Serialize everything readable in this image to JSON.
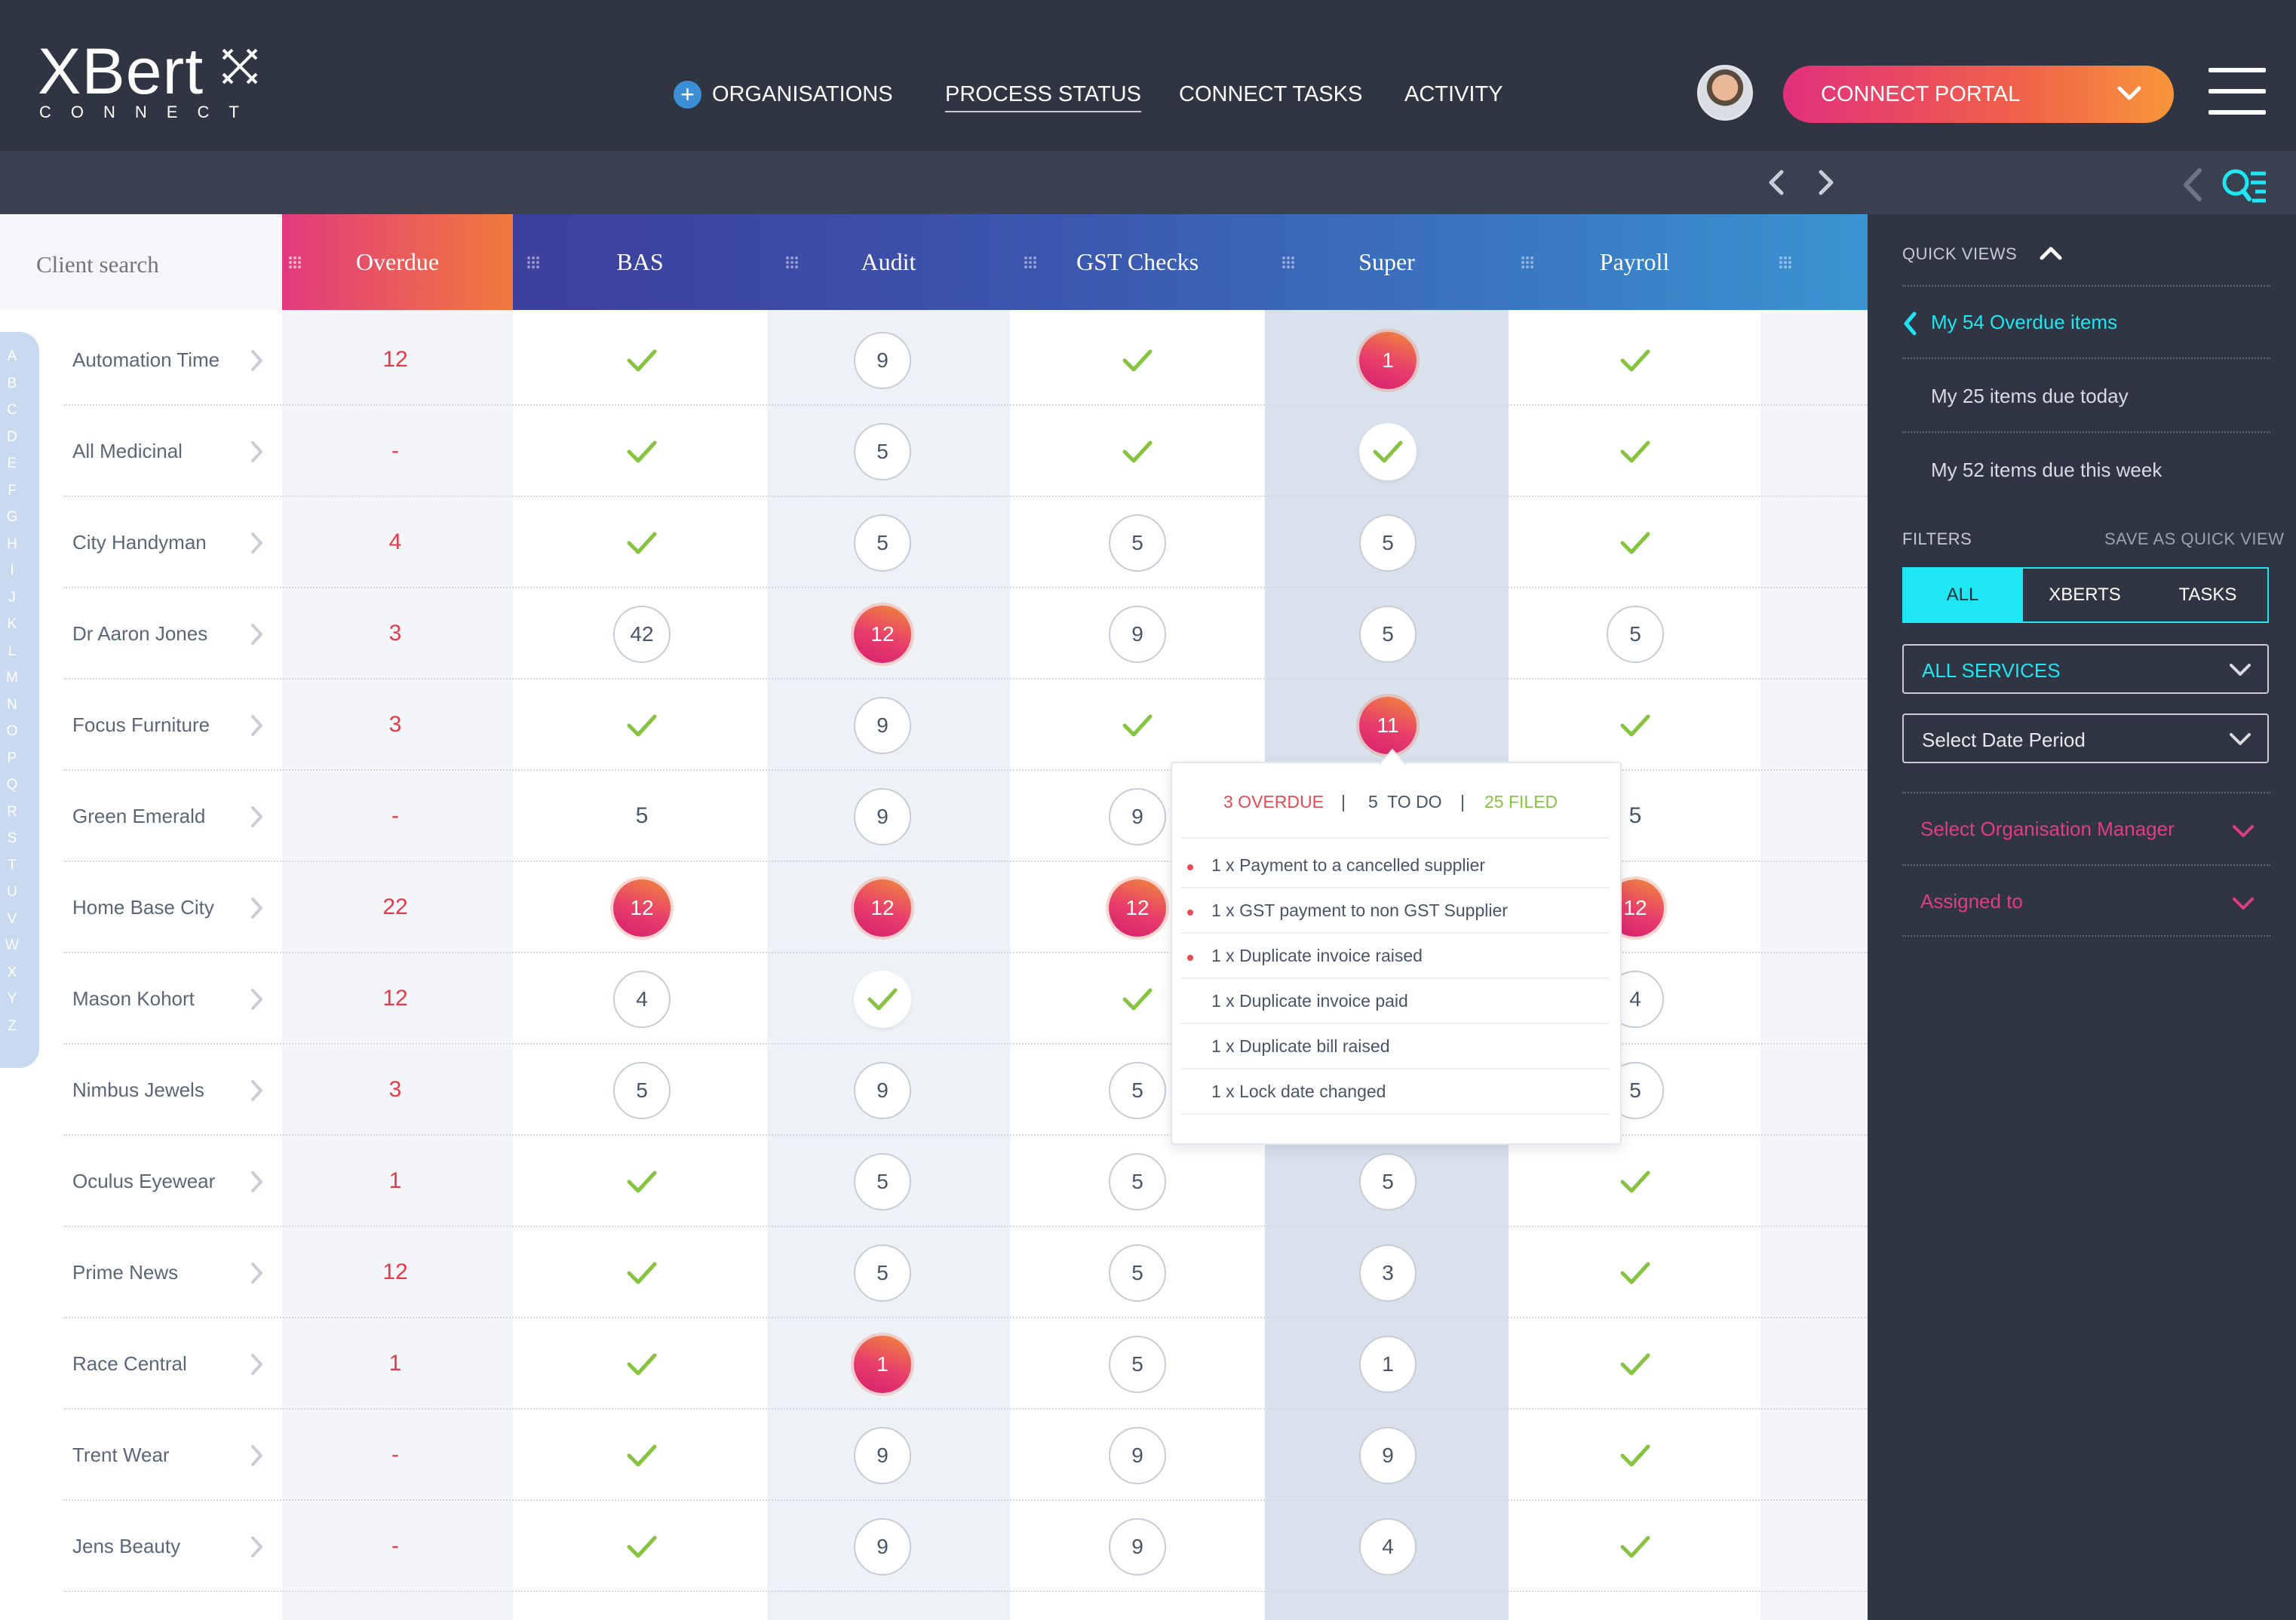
{
  "brand": {
    "name": "XBert",
    "sub": "CONNECT"
  },
  "nav": {
    "items": [
      "ORGANISATIONS",
      "PROCESS STATUS",
      "CONNECT TASKS",
      "ACTIVITY"
    ],
    "portal_label": "CONNECT PORTAL"
  },
  "search": {
    "placeholder": "Client search"
  },
  "columns": [
    "Overdue",
    "BAS",
    "Audit",
    "GST Checks",
    "Super",
    "Payroll"
  ],
  "alphabet": [
    "A",
    "B",
    "C",
    "D",
    "E",
    "F",
    "G",
    "H",
    "I",
    "J",
    "K",
    "L",
    "M",
    "N",
    "O",
    "P",
    "Q",
    "R",
    "S",
    "T",
    "U",
    "V",
    "W",
    "X",
    "Y",
    "Z"
  ],
  "rows": [
    {
      "name": "Automation Time",
      "overdue": "12",
      "cells": [
        "check",
        "c:9",
        "check",
        "g:1",
        "check"
      ]
    },
    {
      "name": "All Medicinal",
      "overdue": "-",
      "cells": [
        "check",
        "c:5",
        "check",
        "w:check",
        "check"
      ]
    },
    {
      "name": "City Handyman",
      "overdue": "4",
      "cells": [
        "check",
        "c:5",
        "c:5",
        "c:5",
        "check"
      ]
    },
    {
      "name": "Dr Aaron Jones",
      "overdue": "3",
      "cells": [
        "c:42",
        "g:12",
        "c:9",
        "c:5",
        "c:5"
      ]
    },
    {
      "name": "Focus Furniture",
      "overdue": "3",
      "cells": [
        "check",
        "c:9",
        "check",
        "g:11",
        "check"
      ]
    },
    {
      "name": "Green Emerald",
      "overdue": "-",
      "cells": [
        "n:5",
        "c:9",
        "c:9",
        "",
        "n:5"
      ]
    },
    {
      "name": "Home Base City",
      "overdue": "22",
      "cells": [
        "g:12",
        "g:12",
        "g:12",
        "",
        "g:12"
      ]
    },
    {
      "name": "Mason Kohort",
      "overdue": "12",
      "cells": [
        "c:4",
        "w:check",
        "check",
        "",
        "c:4"
      ]
    },
    {
      "name": "Nimbus Jewels",
      "overdue": "3",
      "cells": [
        "c:5",
        "c:9",
        "c:5",
        "",
        "c:5"
      ]
    },
    {
      "name": "Oculus Eyewear",
      "overdue": "1",
      "cells": [
        "check",
        "c:5",
        "c:5",
        "c:5",
        "check"
      ]
    },
    {
      "name": "Prime News",
      "overdue": "12",
      "cells": [
        "check",
        "c:5",
        "c:5",
        "c:3",
        "check"
      ]
    },
    {
      "name": "Race Central",
      "overdue": "1",
      "cells": [
        "check",
        "g:1",
        "c:5",
        "c:1",
        "check"
      ]
    },
    {
      "name": "Trent Wear",
      "overdue": "-",
      "cells": [
        "check",
        "c:9",
        "c:9",
        "c:9",
        "check"
      ]
    },
    {
      "name": "Jens Beauty",
      "overdue": "-",
      "cells": [
        "check",
        "c:9",
        "c:9",
        "c:4",
        "check"
      ]
    }
  ],
  "popup": {
    "overdue": "3 OVERDUE",
    "todo": "5  TO DO",
    "filed": "25 FILED",
    "sep": "|",
    "items": [
      {
        "text": "1 x Payment to a cancelled supplier",
        "flag": true
      },
      {
        "text": "1 x GST payment to non GST Supplier",
        "flag": true
      },
      {
        "text": "1 x Duplicate invoice raised",
        "flag": true
      },
      {
        "text": "1 x Duplicate invoice paid",
        "flag": false
      },
      {
        "text": "1 x Duplicate bill raised",
        "flag": false
      },
      {
        "text": "1 x Lock date changed",
        "flag": false
      }
    ]
  },
  "sidebar": {
    "quick_views_label": "QUICK VIEWS",
    "quick_views": [
      "My 54 Overdue items",
      "My 25 items due today",
      "My 52 items due this week"
    ],
    "filters_label": "FILTERS",
    "save_label": "SAVE AS QUICK VIEW",
    "toggle": [
      "ALL",
      "XBERTS",
      "TASKS"
    ],
    "services": "ALL SERVICES",
    "date_period": "Select Date Period",
    "org_manager": "Select Organisation Manager",
    "assigned": "Assigned to"
  },
  "colors": {
    "accent_cyan": "#1ee6f2",
    "accent_pink": "#e23d83",
    "overdue_red": "#e43b4a",
    "check_green": "#86c440",
    "nav_bg": "#2f3542"
  }
}
